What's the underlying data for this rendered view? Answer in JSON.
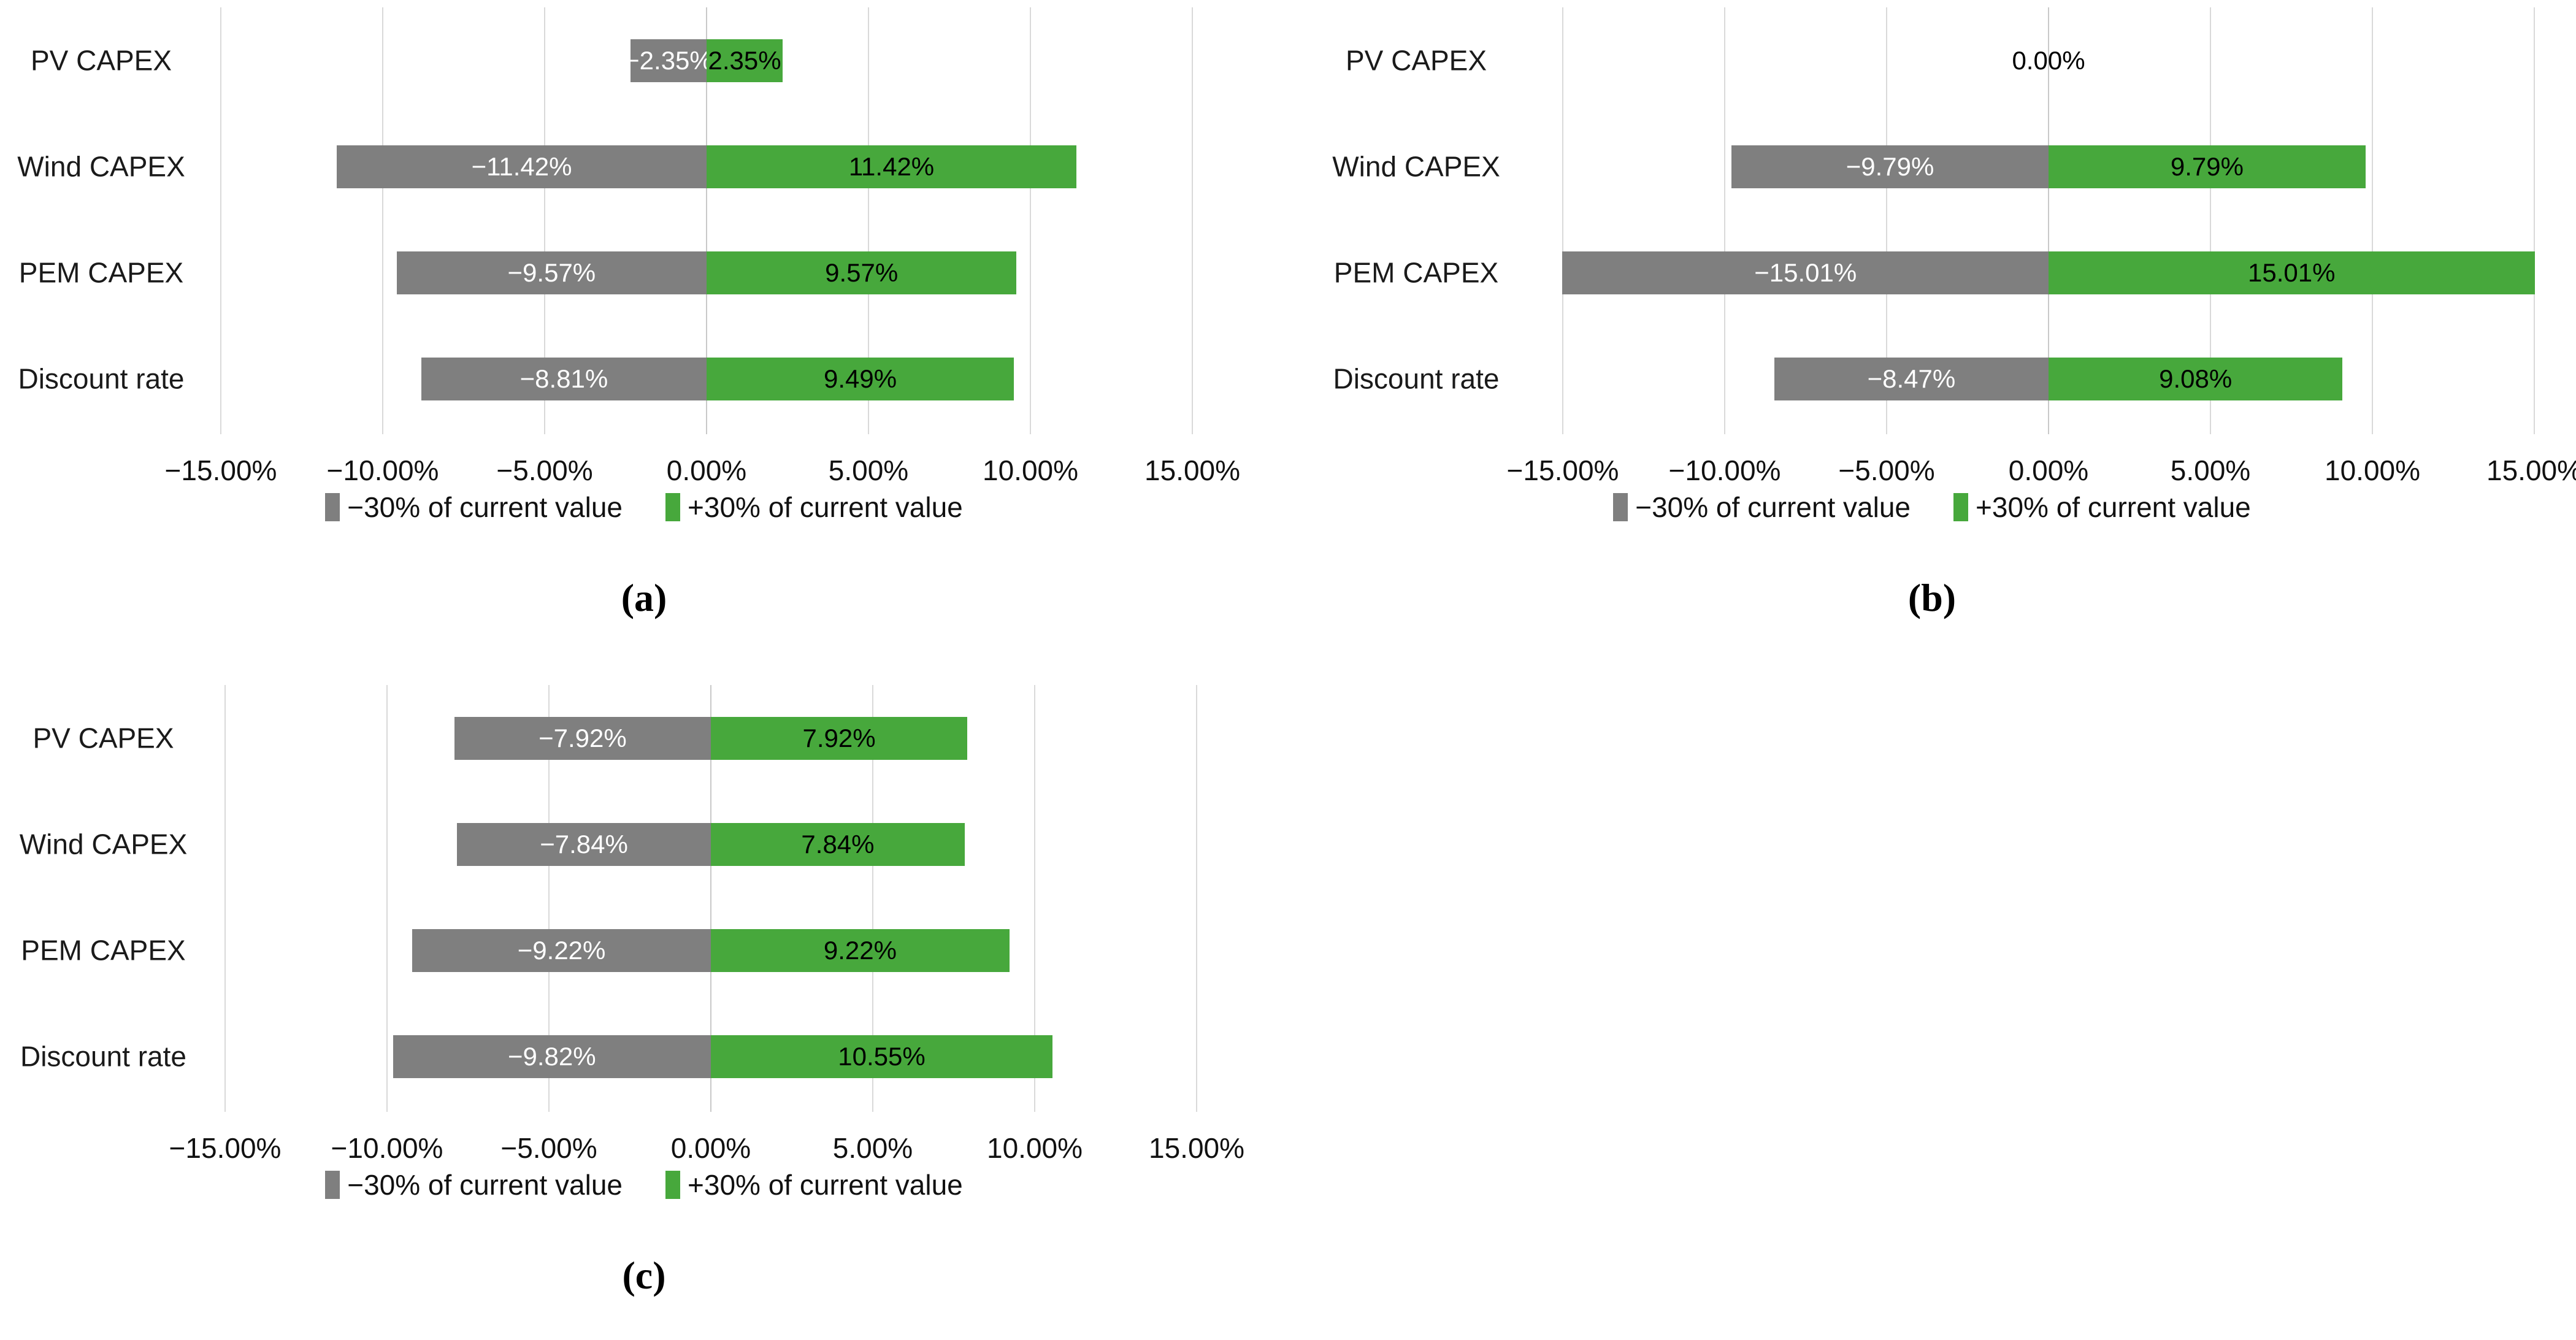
{
  "figure": {
    "legend": {
      "negative_label": "−30% of current value",
      "positive_label": "+30% of current value"
    },
    "colors": {
      "negative": "#7f7f7f",
      "positive": "#47a83c",
      "gridline": "#d9d9d9",
      "negative_bar_label": "#ffffff",
      "positive_bar_label": "#000000"
    }
  },
  "chart_data": [
    {
      "type": "bar",
      "orientation": "horizontal",
      "caption": "(a)",
      "categories": [
        "PV CAPEX",
        "Wind CAPEX",
        "PEM CAPEX",
        "Discount rate"
      ],
      "series": [
        {
          "name": "−30% of current value",
          "color_key": "negative",
          "values": [
            -2.35,
            -11.42,
            -9.57,
            -8.81
          ],
          "labels": [
            "−2.35%",
            "−11.42%",
            "−9.57%",
            "−8.81%"
          ]
        },
        {
          "name": "+30% of current value",
          "color_key": "positive",
          "values": [
            2.35,
            11.42,
            9.57,
            9.49
          ],
          "labels": [
            "2.35%",
            "11.42%",
            "9.57%",
            "9.49%"
          ]
        }
      ],
      "xlim": [
        -15,
        15
      ],
      "x_tick_labels": [
        "−15.00%",
        "−10.00%",
        "−5.00%",
        "0.00%",
        "5.00%",
        "10.00%",
        "15.00%"
      ],
      "grid": true,
      "legend_position": "bottom"
    },
    {
      "type": "bar",
      "orientation": "horizontal",
      "caption": "(b)",
      "categories": [
        "PV CAPEX",
        "Wind CAPEX",
        "PEM CAPEX",
        "Discount rate"
      ],
      "series": [
        {
          "name": "−30% of current value",
          "color_key": "negative",
          "values": [
            0,
            -9.79,
            -15.01,
            -8.47
          ],
          "labels": [
            "",
            "−9.79%",
            "−15.01%",
            "−8.47%"
          ]
        },
        {
          "name": "+30% of current value",
          "color_key": "positive",
          "values": [
            0,
            9.79,
            15.01,
            9.08
          ],
          "labels": [
            "0.00%",
            "9.79%",
            "15.01%",
            "9.08%"
          ]
        }
      ],
      "xlim": [
        -15,
        15
      ],
      "x_tick_labels": [
        "−15.00%",
        "−10.00%",
        "−5.00%",
        "0.00%",
        "5.00%",
        "10.00%",
        "15.00%"
      ],
      "grid": true,
      "legend_position": "bottom"
    },
    {
      "type": "bar",
      "orientation": "horizontal",
      "caption": "(c)",
      "categories": [
        "PV CAPEX",
        "Wind CAPEX",
        "PEM CAPEX",
        "Discount rate"
      ],
      "series": [
        {
          "name": "−30% of current value",
          "color_key": "negative",
          "values": [
            -7.92,
            -7.84,
            -9.22,
            -9.82
          ],
          "labels": [
            "−7.92%",
            "−7.84%",
            "−9.22%",
            "−9.82%"
          ]
        },
        {
          "name": "+30% of current value",
          "color_key": "positive",
          "values": [
            7.92,
            7.84,
            9.22,
            10.55
          ],
          "labels": [
            "7.92%",
            "7.84%",
            "9.22%",
            "10.55%"
          ]
        }
      ],
      "xlim": [
        -15,
        15
      ],
      "x_tick_labels": [
        "−15.00%",
        "−10.00%",
        "−5.00%",
        "0.00%",
        "5.00%",
        "10.00%",
        "15.00%"
      ],
      "grid": true,
      "legend_position": "bottom"
    }
  ]
}
